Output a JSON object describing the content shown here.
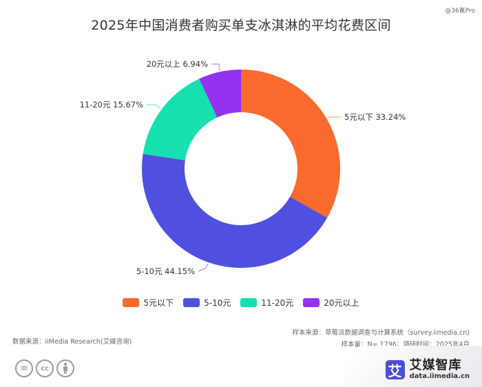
{
  "watermark": "@36氪Pro",
  "title": "2025年中国消费者购买单支冰淇淋的平均花费区间",
  "chart_data": {
    "type": "pie",
    "subtype": "donut",
    "title": "2025年中国消费者购买单支冰淇淋的平均花费区间",
    "unit": "%",
    "categories": [
      "5元以下",
      "5-10元",
      "11-20元",
      "20元以上"
    ],
    "values": [
      33.24,
      44.15,
      15.67,
      6.94
    ],
    "colors": [
      "#f96b2c",
      "#5050e0",
      "#16e0b0",
      "#9333f0"
    ],
    "data_labels": [
      "5元以下 33.24%",
      "5-10元 44.15%",
      "11-20元 15.67%",
      "20元以上 6.94%"
    ],
    "start_angle": "12 o'clock",
    "direction": "clockwise",
    "legend_position": "bottom"
  },
  "legend": {
    "items": [
      {
        "label": "5元以下",
        "color": "#f96b2c"
      },
      {
        "label": "5-10元",
        "color": "#5050e0"
      },
      {
        "label": "11-20元",
        "color": "#16e0b0"
      },
      {
        "label": "20元以上",
        "color": "#9333f0"
      }
    ]
  },
  "footer": {
    "data_source": "数据来源：iiMedia Research(艾媒咨询)",
    "sample_source": "样本来源：草莓派数据调查与计算系统（survey.iimedia.cn)",
    "sample_info": "样本量：N= 1796；调研时间：2025年4月"
  },
  "license_icons": [
    "no-derivatives-icon",
    "creative-commons-icon",
    "attribution-icon"
  ],
  "license_glyphs": [
    "=",
    "cc",
    "👤"
  ],
  "brand": {
    "logo_char": "艾",
    "name": "艾媒智库",
    "url": "data.iimedia.cn"
  }
}
